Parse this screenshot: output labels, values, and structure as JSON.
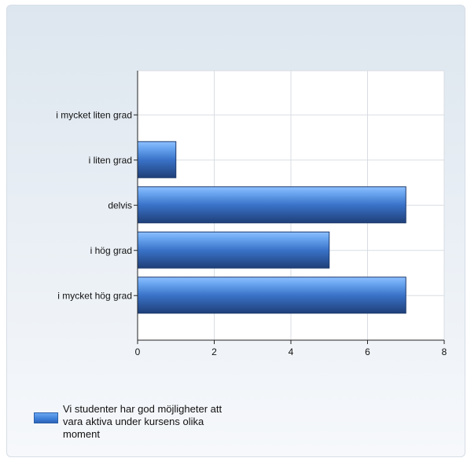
{
  "chart_data": {
    "type": "bar",
    "orientation": "horizontal",
    "categories": [
      "i mycket liten grad",
      "i liten grad",
      "delvis",
      "i hög grad",
      "i mycket hög grad"
    ],
    "series": [
      {
        "name": "Vi studenter har god möjligheter att vara aktiva under kursens olika moment",
        "values": [
          0,
          1,
          7,
          5,
          7
        ]
      }
    ],
    "xlim": [
      0,
      8
    ],
    "xticks": [
      "0",
      "2",
      "4",
      "6",
      "8"
    ],
    "grid": true,
    "legend_position": "bottom-left",
    "bar_color": "#3e7fd9"
  },
  "legend": {
    "label": "Vi studenter har god möjligheter att vara aktiva under kursens olika moment"
  }
}
